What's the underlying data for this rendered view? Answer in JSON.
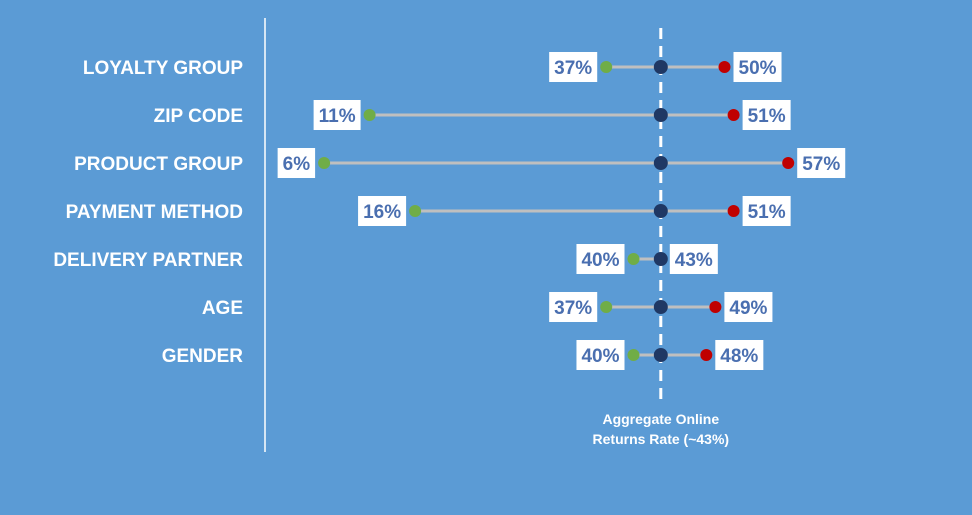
{
  "chart_data": {
    "type": "dumbbell",
    "aggregate": 43,
    "xlim": [
      0,
      100
    ],
    "annotation": [
      "Aggregate Online",
      "Returns Rate (~43%)"
    ],
    "rows": [
      {
        "category": "LOYALTY GROUP",
        "low": 37,
        "high": 50
      },
      {
        "category": "ZIP CODE",
        "low": 11,
        "high": 51
      },
      {
        "category": "PRODUCT GROUP",
        "low": 6,
        "high": 57
      },
      {
        "category": "PAYMENT METHOD",
        "low": 16,
        "high": 51
      },
      {
        "category": "DELIVERY PARTNER",
        "low": 40,
        "high": 43
      },
      {
        "category": "AGE",
        "low": 37,
        "high": 49
      },
      {
        "category": "GENDER",
        "low": 40,
        "high": 48
      }
    ]
  },
  "colors": {
    "background": "#5b9bd5",
    "low_dot": "#70ad47",
    "high_dot": "#c00000",
    "aggregate_dot": "#1f3864",
    "connector": "#bfbfbf",
    "label_box": "#ffffff",
    "value_text": "#4a6fb0",
    "divider": "#ffffff"
  }
}
